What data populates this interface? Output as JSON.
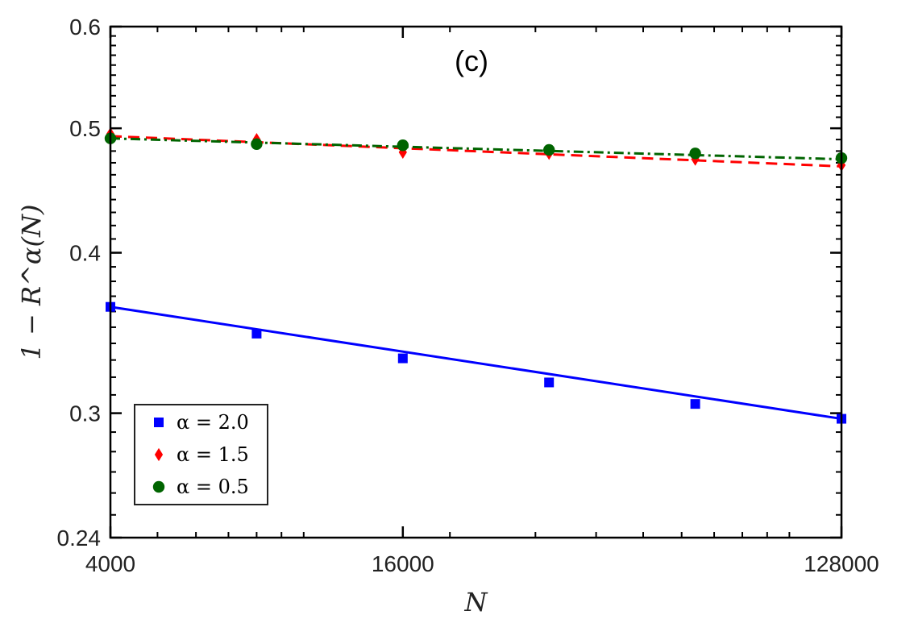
{
  "chart_data": {
    "type": "line",
    "panel_label": "(c)",
    "xlabel": "N",
    "ylabel": "1 − R^α(N)",
    "x_scale": "log",
    "y_scale": "log",
    "xlim": [
      4000,
      128000
    ],
    "ylim": [
      0.24,
      0.6
    ],
    "x_ticks": [
      {
        "value": 4000,
        "label": "4000"
      },
      {
        "value": 16000,
        "label": "16000"
      },
      {
        "value": 128000,
        "label": "128000"
      }
    ],
    "y_ticks": [
      {
        "value": 0.24,
        "label": "0.24"
      },
      {
        "value": 0.3,
        "label": "0.3"
      },
      {
        "value": 0.4,
        "label": "0.4"
      },
      {
        "value": 0.5,
        "label": "0.5"
      },
      {
        "value": 0.6,
        "label": "0.6"
      }
    ],
    "grid": false,
    "legend_position": "bottom-left",
    "x": [
      4000,
      8000,
      16000,
      32000,
      64000,
      128000
    ],
    "series": [
      {
        "name": "α = 2.0",
        "marker": "square",
        "line_style": "solid",
        "color": "#0000ff",
        "values": [
          0.363,
          0.346,
          0.331,
          0.317,
          0.305,
          0.297
        ],
        "fit": [
          0.363,
          0.297
        ]
      },
      {
        "name": "α = 1.5",
        "marker": "diamond",
        "line_style": "dashed",
        "color": "#ff0000",
        "values": [
          0.495,
          0.49,
          0.479,
          0.478,
          0.473,
          0.468
        ],
        "fit": [
          0.493,
          0.467
        ]
      },
      {
        "name": "α = 0.5",
        "marker": "circle",
        "line_style": "dashdot",
        "color": "#006400",
        "values": [
          0.491,
          0.486,
          0.485,
          0.481,
          0.478,
          0.474
        ],
        "fit": [
          0.491,
          0.473
        ]
      }
    ]
  }
}
